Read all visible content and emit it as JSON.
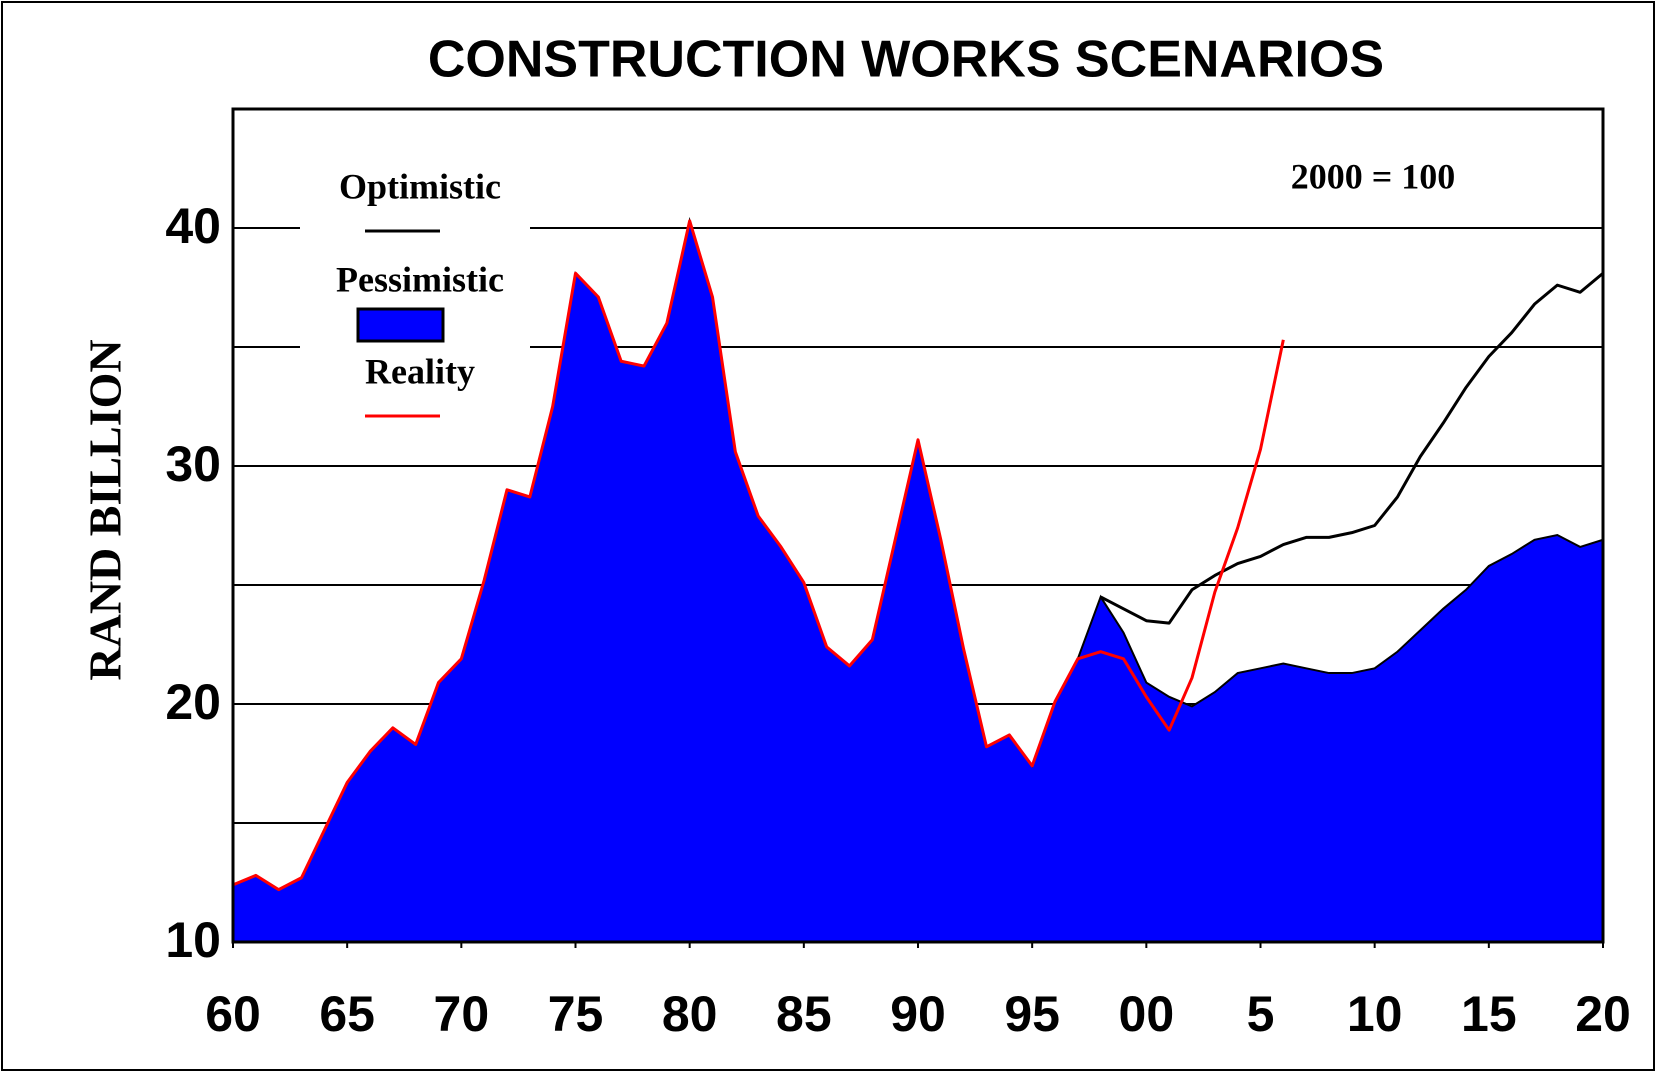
{
  "chart_data": {
    "type": "area",
    "title": "CONSTRUCTION WORKS SCENARIOS",
    "y_label": "RAND BILLION",
    "annotation": "2000 = 100",
    "x": [
      1960,
      1961,
      1962,
      1963,
      1964,
      1965,
      1966,
      1967,
      1968,
      1969,
      1970,
      1971,
      1972,
      1973,
      1974,
      1975,
      1976,
      1977,
      1978,
      1979,
      1980,
      1981,
      1982,
      1983,
      1984,
      1985,
      1986,
      1987,
      1988,
      1989,
      1990,
      1991,
      1992,
      1993,
      1994,
      1995,
      1996,
      1997,
      1998,
      1999,
      2000,
      2001,
      2002,
      2003,
      2004,
      2005,
      2006,
      2007,
      2008,
      2009,
      2010,
      2011,
      2012,
      2013,
      2014,
      2015,
      2016,
      2017,
      2018,
      2019,
      2020
    ],
    "series": [
      {
        "name": "Optimistic",
        "color": "#000000",
        "style": "line",
        "values": [
          null,
          null,
          null,
          null,
          null,
          null,
          null,
          null,
          null,
          null,
          null,
          null,
          null,
          null,
          null,
          null,
          null,
          null,
          null,
          null,
          null,
          null,
          null,
          null,
          null,
          null,
          null,
          null,
          null,
          null,
          null,
          null,
          null,
          null,
          null,
          null,
          null,
          null,
          24.5,
          24.0,
          23.5,
          23.4,
          24.8,
          25.4,
          25.9,
          26.2,
          26.7,
          27.0,
          27.0,
          27.2,
          27.5,
          28.7,
          30.4,
          31.8,
          33.3,
          34.6,
          35.6,
          36.8,
          37.6,
          37.3,
          38.1
        ]
      },
      {
        "name": "Pessimistic",
        "color": "#0000ff",
        "style": "area",
        "values": [
          12.4,
          12.8,
          12.2,
          12.7,
          14.7,
          16.7,
          18.0,
          19.0,
          18.3,
          20.9,
          21.9,
          25.2,
          29.0,
          28.7,
          32.5,
          38.1,
          37.1,
          34.4,
          34.2,
          36.0,
          40.3,
          37.1,
          30.6,
          27.9,
          26.6,
          25.1,
          22.4,
          21.6,
          22.7,
          26.9,
          31.1,
          26.9,
          22.3,
          18.2,
          18.7,
          17.4,
          20.1,
          21.9,
          24.5,
          23.0,
          20.9,
          20.3,
          19.9,
          20.5,
          21.3,
          21.5,
          21.7,
          21.5,
          21.3,
          21.3,
          21.5,
          22.2,
          23.1,
          24.0,
          24.8,
          25.8,
          26.3,
          26.9,
          27.1,
          26.6,
          26.9
        ]
      },
      {
        "name": "Reality",
        "color": "#ff0000",
        "style": "line",
        "values": [
          12.4,
          12.8,
          12.2,
          12.7,
          14.7,
          16.7,
          18.0,
          19.0,
          18.3,
          20.9,
          21.9,
          25.2,
          29.0,
          28.7,
          32.5,
          38.1,
          37.1,
          34.4,
          34.2,
          36.0,
          40.3,
          37.1,
          30.6,
          27.9,
          26.6,
          25.1,
          22.4,
          21.6,
          22.7,
          26.9,
          31.1,
          26.9,
          22.3,
          18.2,
          18.7,
          17.4,
          20.1,
          21.9,
          22.2,
          21.9,
          20.3,
          18.9,
          21.1,
          24.7,
          27.4,
          30.7,
          35.3,
          null,
          null,
          null,
          null,
          null,
          null,
          null,
          null,
          null,
          null,
          null,
          null,
          null,
          null
        ]
      }
    ],
    "xlim": [
      1960,
      2020
    ],
    "xticks": [
      {
        "value": 1960,
        "label": "60"
      },
      {
        "value": 1965,
        "label": "65"
      },
      {
        "value": 1970,
        "label": "70"
      },
      {
        "value": 1975,
        "label": "75"
      },
      {
        "value": 1980,
        "label": "80"
      },
      {
        "value": 1985,
        "label": "85"
      },
      {
        "value": 1990,
        "label": "90"
      },
      {
        "value": 1995,
        "label": "95"
      },
      {
        "value": 2000,
        "label": "00"
      },
      {
        "value": 2005,
        "label": "5"
      },
      {
        "value": 2010,
        "label": "10"
      },
      {
        "value": 2015,
        "label": "15"
      },
      {
        "value": 2020,
        "label": "20"
      }
    ],
    "ylim": [
      10,
      45
    ],
    "yticks": [
      10,
      20,
      30,
      40
    ],
    "minor_yticks": [
      15,
      25,
      35
    ],
    "grid": true,
    "legend": "top-left"
  }
}
